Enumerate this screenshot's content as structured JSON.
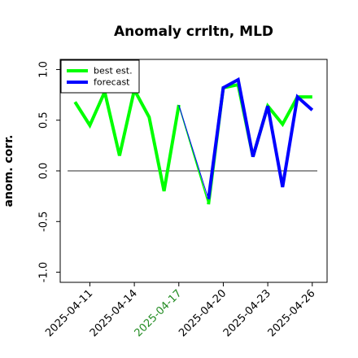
{
  "chart_data": {
    "type": "line",
    "title": "Anomaly crrltn, MLD",
    "xlabel": "",
    "ylabel": "anom. corr.",
    "x": [
      "2025-04-10",
      "2025-04-11",
      "2025-04-12",
      "2025-04-13",
      "2025-04-14",
      "2025-04-15",
      "2025-04-16",
      "2025-04-17",
      "2025-04-18",
      "2025-04-19",
      "2025-04-20",
      "2025-04-21",
      "2025-04-22",
      "2025-04-23",
      "2025-04-24",
      "2025-04-25",
      "2025-04-26"
    ],
    "x_ticks": [
      "2025-04-11",
      "2025-04-14",
      "2025-04-17",
      "2025-04-20",
      "2025-04-23",
      "2025-04-26"
    ],
    "x_tick_colors": [
      "#000000",
      "#000000",
      "#228B22",
      "#000000",
      "#000000",
      "#000000"
    ],
    "xlim": [
      "2025-04-09",
      "2025-04-27"
    ],
    "ylim": [
      -1.1,
      1.1
    ],
    "y_ticks": [
      "1.0",
      "0.5",
      "0.0",
      "-0.5",
      "-1.0"
    ],
    "y_tick_values": [
      1.0,
      0.5,
      0.0,
      -0.5,
      -1.0
    ],
    "reference_line": {
      "y": 0.0,
      "x_from": "2025-04-10",
      "x_to": "2025-04-27",
      "color": "#555555"
    },
    "grid": false,
    "legend": "top-left",
    "series": [
      {
        "name": "best est.",
        "color": "#00ff00",
        "values": [
          0.68,
          0.45,
          0.78,
          0.15,
          0.8,
          0.53,
          -0.2,
          0.65,
          null,
          -0.33,
          0.82,
          0.85,
          0.14,
          0.64,
          0.46,
          0.73,
          0.73
        ]
      },
      {
        "name": "forecast",
        "color": "#0000ff",
        "values": [
          null,
          null,
          null,
          null,
          null,
          null,
          null,
          0.65,
          null,
          -0.28,
          0.82,
          0.9,
          0.14,
          0.64,
          -0.16,
          0.73,
          0.6
        ]
      }
    ],
    "forecast_bridge": {
      "from": "2025-04-17",
      "to": "2025-04-19",
      "color": "#0000ff"
    }
  }
}
